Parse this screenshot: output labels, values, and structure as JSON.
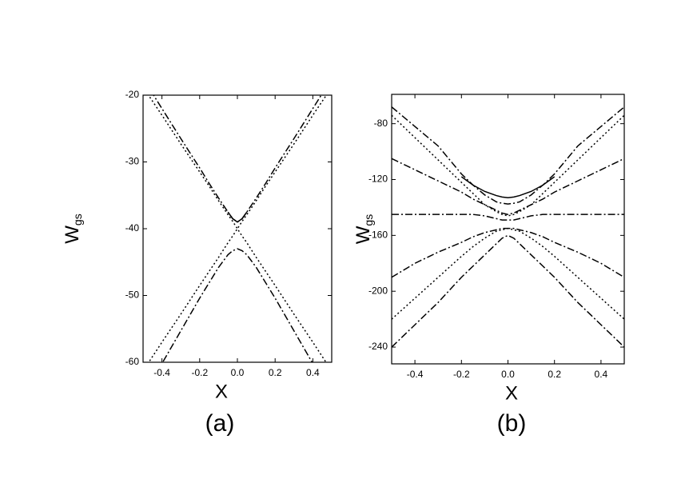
{
  "chart_data": [
    {
      "type": "line",
      "xlabel": "X",
      "ylabel": "W",
      "ylabel_sub": "gs",
      "caption": "(a)",
      "xlim": [
        -0.5,
        0.5
      ],
      "ylim": [
        -60,
        -20
      ],
      "xticks": [
        -0.4,
        -0.2,
        {
          "value": 0,
          "label": "0.0"
        },
        0.2,
        0.4
      ],
      "yticks": [
        -60,
        -50,
        -40,
        -30,
        -20
      ],
      "x": [
        -0.5,
        -0.4,
        -0.3,
        -0.2,
        -0.15,
        -0.1,
        -0.05,
        -0.025,
        0,
        0.025,
        0.05,
        0.1,
        0.15,
        0.2,
        0.3,
        0.4,
        0.5
      ],
      "series": [
        {
          "style": "dotted",
          "color": "#000000",
          "values": [
            -18.8,
            -23,
            -27.3,
            -31.5,
            -33.6,
            -35.8,
            -37.9,
            -38.9,
            -40,
            -41.1,
            -42.1,
            -44.3,
            -46.4,
            -48.5,
            -52.8,
            -57,
            -61.3
          ]
        },
        {
          "style": "dotted",
          "color": "#000000",
          "values": [
            -61.3,
            -57,
            -52.8,
            -48.5,
            -46.4,
            -44.3,
            -42.1,
            -41.1,
            -40,
            -38.9,
            -37.9,
            -35.8,
            -33.6,
            -31.5,
            -27.3,
            -23,
            -18.8
          ]
        },
        {
          "style": "dashdot",
          "color": "#000000",
          "values": [
            -17.5,
            -22,
            -26.5,
            -30.9,
            -33.2,
            -35.4,
            -37.5,
            -38.5,
            -39,
            -38.5,
            -37.5,
            -35.4,
            -33.2,
            -30.9,
            -26.5,
            -22,
            -17.5
          ]
        },
        {
          "style": "solid",
          "color": "#000000",
          "values": [
            null,
            null,
            null,
            null,
            null,
            null,
            -37.5,
            -38.5,
            -39,
            -38.5,
            -37.5,
            null,
            null,
            null,
            null,
            null,
            null
          ]
        },
        {
          "style": "dashdot",
          "color": "#000000",
          "values": [
            -65.2,
            -60.2,
            -55.3,
            -50.4,
            -48.1,
            -45.8,
            -43.9,
            -43.3,
            -43,
            -43.3,
            -43.9,
            -45.8,
            -48.1,
            -50.4,
            -55.3,
            -60.2,
            -65.2
          ]
        }
      ]
    },
    {
      "type": "line",
      "xlabel": "X",
      "ylabel": "W",
      "ylabel_sub": "gs",
      "caption": "(b)",
      "xlim": [
        -0.5,
        0.5
      ],
      "ylim": [
        -252,
        -59
      ],
      "xticks": [
        -0.4,
        -0.2,
        {
          "value": 0,
          "label": "0.0"
        },
        0.2,
        0.4
      ],
      "yticks": [
        -240,
        -200,
        -160,
        -120,
        -80
      ],
      "x": [
        -0.5,
        -0.4,
        -0.3,
        -0.2,
        -0.15,
        -0.1,
        -0.05,
        -0.025,
        0,
        0.025,
        0.05,
        0.1,
        0.15,
        0.2,
        0.3,
        0.4,
        0.5
      ],
      "series": [
        {
          "style": "solid",
          "color": "#000000",
          "values": [
            null,
            null,
            null,
            -118,
            -124,
            -128.5,
            -131.5,
            -132.5,
            -133,
            -132.5,
            -131.5,
            -128.5,
            -124,
            -118,
            null,
            null,
            null
          ]
        },
        {
          "style": "dashdot",
          "color": "#000000",
          "values": [
            -68,
            -82,
            -96,
            -116,
            -124,
            -131,
            -136,
            -137,
            -137.5,
            -137,
            -136,
            -131,
            -124,
            -116,
            -96,
            -82,
            -68
          ]
        },
        {
          "style": "dotted",
          "color": "#000000",
          "values": [
            -74,
            -90,
            -106,
            -122,
            -130,
            -138,
            -143,
            -145,
            -146,
            -145,
            -143,
            -138,
            -130,
            -122,
            -106,
            -90,
            -74
          ]
        },
        {
          "style": "dashdot",
          "color": "#000000",
          "values": [
            -105,
            -113,
            -121,
            -129,
            -134,
            -138,
            -142,
            -144,
            -145,
            -144,
            -142,
            -138,
            -134,
            -129,
            -121,
            -113,
            -105
          ]
        },
        {
          "style": "dashdot",
          "color": "#000000",
          "values": [
            -145,
            -145,
            -145,
            -145,
            -145,
            -146,
            -148,
            -149,
            -149,
            -149,
            -148,
            -146,
            -145,
            -145,
            -145,
            -145,
            -145
          ]
        },
        {
          "style": "dashdot",
          "color": "#000000",
          "values": [
            -190,
            -180,
            -172,
            -165,
            -161,
            -158,
            -156,
            -155,
            -155,
            -155,
            -156,
            -158,
            -161,
            -165,
            -172,
            -180,
            -190
          ]
        },
        {
          "style": "dotted",
          "color": "#000000",
          "values": [
            -220,
            -205,
            -190,
            -175,
            -168,
            -162,
            -157,
            -156,
            -155,
            -156,
            -157,
            -162,
            -168,
            -175,
            -190,
            -205,
            -220
          ]
        },
        {
          "style": "dashdot",
          "color": "#000000",
          "values": [
            -240,
            -224,
            -208,
            -190,
            -182,
            -174,
            -166,
            -162,
            -160,
            -162,
            -166,
            -174,
            -182,
            -190,
            -208,
            -224,
            -240
          ]
        }
      ]
    }
  ]
}
